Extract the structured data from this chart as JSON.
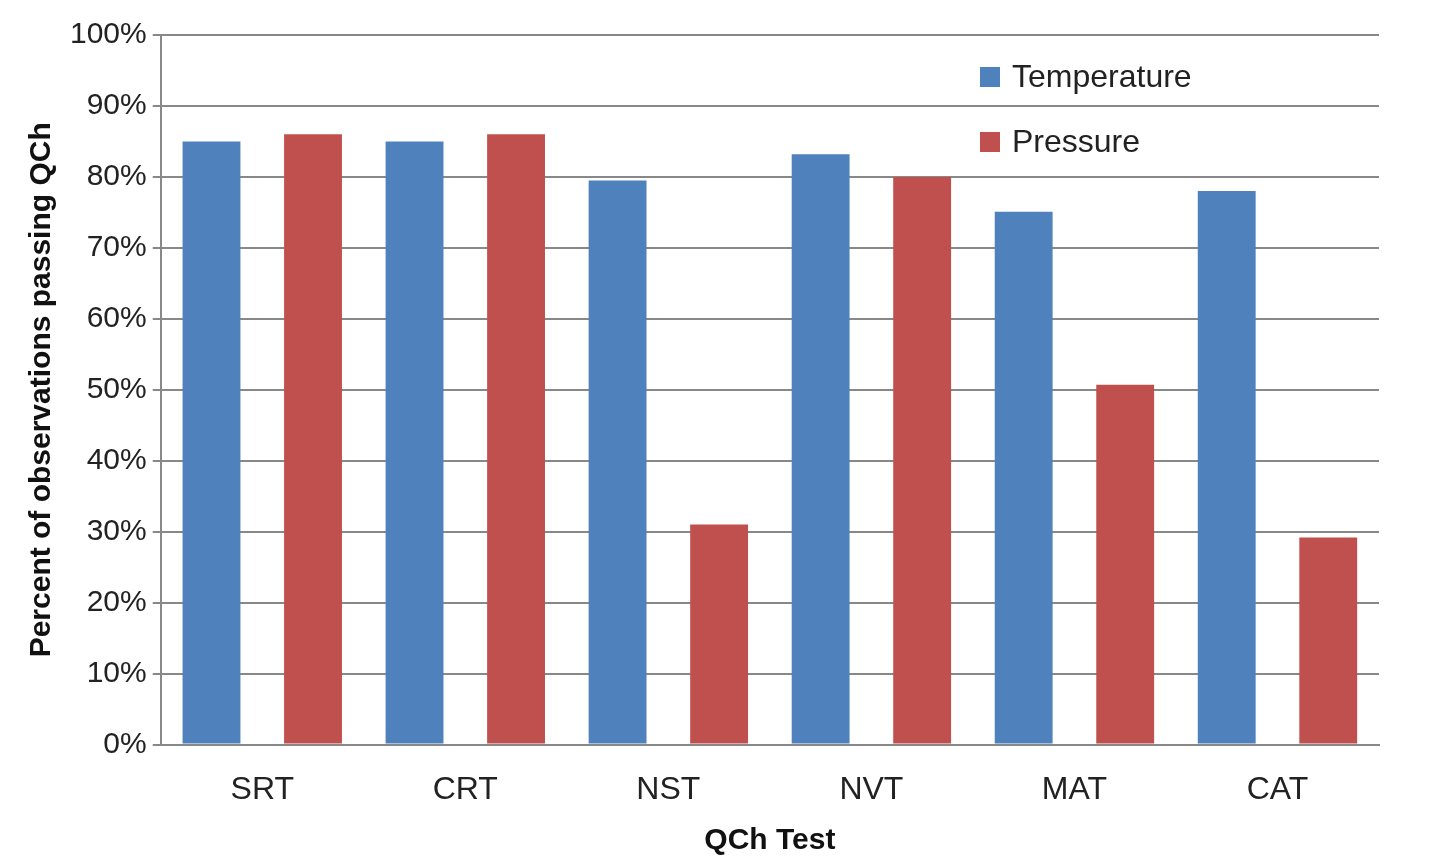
{
  "chart_data": {
    "type": "bar",
    "xlabel": "QCh Test",
    "ylabel": "Percent of observations passing QCh",
    "categories": [
      "SRT",
      "CRT",
      "NST",
      "NVT",
      "MAT",
      "CAT"
    ],
    "series": [
      {
        "name": "Temperature",
        "color": "#4f81bd",
        "values": [
          85,
          85,
          79.5,
          83.2,
          75.1,
          78
        ]
      },
      {
        "name": "Pressure",
        "color": "#c0504d",
        "values": [
          86,
          86,
          31,
          80,
          50.7,
          29.2
        ]
      }
    ],
    "ylim": [
      0,
      100
    ],
    "yticks": [
      {
        "value": 0,
        "label": "0%"
      },
      {
        "value": 10,
        "label": "10%"
      },
      {
        "value": 20,
        "label": "20%"
      },
      {
        "value": 30,
        "label": "30%"
      },
      {
        "value": 40,
        "label": "40%"
      },
      {
        "value": 50,
        "label": "50%"
      },
      {
        "value": 60,
        "label": "60%"
      },
      {
        "value": 70,
        "label": "70%"
      },
      {
        "value": 80,
        "label": "80%"
      },
      {
        "value": 90,
        "label": "90%"
      },
      {
        "value": 100,
        "label": "100%"
      }
    ],
    "grid": "y",
    "legend": "top right"
  }
}
